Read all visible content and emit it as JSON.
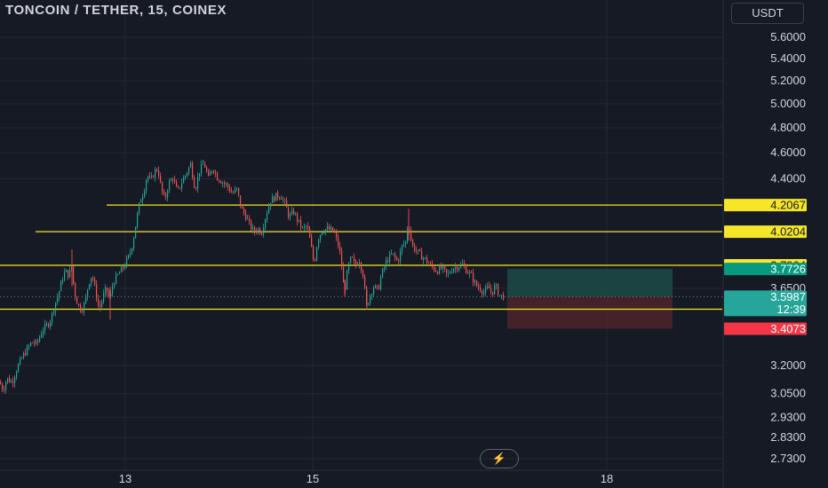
{
  "header": {
    "title": "TONCOIN / TETHER, 15, COINEX",
    "currency_button": "USDT",
    "logo_icon": "tradingview-icon"
  },
  "colors": {
    "background": "#161a25",
    "up": "#26a69a",
    "down": "#ef5350",
    "level_line": "#f5e629",
    "grid": "#242833",
    "profit_zone": "#1c4b48",
    "loss_zone": "#4e242c"
  },
  "chart_data": {
    "type": "candlestick",
    "y_scale": "log",
    "ylim": [
      2.7,
      5.7
    ],
    "y_ticks": [
      "5.6000",
      "5.4000",
      "5.2000",
      "5.0000",
      "4.8000",
      "4.6000",
      "4.4000",
      "3.6500",
      "3.2000",
      "3.0500",
      "2.9300",
      "2.8300",
      "2.7300"
    ],
    "x_ticks": [
      "13",
      "15",
      "18"
    ],
    "grid": true,
    "path_points": [
      [
        0,
        3.11
      ],
      [
        4,
        3.07
      ],
      [
        8,
        3.13
      ],
      [
        14,
        3.11
      ],
      [
        20,
        3.19
      ],
      [
        26,
        3.25
      ],
      [
        31,
        3.29
      ],
      [
        36,
        3.33
      ],
      [
        42,
        3.32
      ],
      [
        48,
        3.4
      ],
      [
        54,
        3.43
      ],
      [
        58,
        3.47
      ],
      [
        62,
        3.55
      ],
      [
        66,
        3.61
      ],
      [
        70,
        3.7
      ],
      [
        74,
        3.76
      ],
      [
        78,
        3.73
      ],
      [
        81,
        3.79
      ],
      [
        84,
        3.63
      ],
      [
        88,
        3.55
      ],
      [
        92,
        3.52
      ],
      [
        96,
        3.56
      ],
      [
        100,
        3.68
      ],
      [
        104,
        3.74
      ],
      [
        108,
        3.63
      ],
      [
        112,
        3.52
      ],
      [
        116,
        3.59
      ],
      [
        120,
        3.65
      ],
      [
        124,
        3.58
      ],
      [
        128,
        3.69
      ],
      [
        134,
        3.74
      ],
      [
        140,
        3.79
      ],
      [
        146,
        3.86
      ],
      [
        150,
        3.95
      ],
      [
        154,
        4.1
      ],
      [
        158,
        4.24
      ],
      [
        162,
        4.3
      ],
      [
        166,
        4.43
      ],
      [
        170,
        4.38
      ],
      [
        174,
        4.45
      ],
      [
        178,
        4.48
      ],
      [
        182,
        4.32
      ],
      [
        186,
        4.24
      ],
      [
        190,
        4.36
      ],
      [
        195,
        4.41
      ],
      [
        200,
        4.3
      ],
      [
        206,
        4.39
      ],
      [
        210,
        4.44
      ],
      [
        215,
        4.51
      ],
      [
        220,
        4.32
      ],
      [
        225,
        4.46
      ],
      [
        230,
        4.52
      ],
      [
        235,
        4.4
      ],
      [
        240,
        4.49
      ],
      [
        245,
        4.41
      ],
      [
        250,
        4.38
      ],
      [
        256,
        4.35
      ],
      [
        262,
        4.29
      ],
      [
        267,
        4.32
      ],
      [
        272,
        4.18
      ],
      [
        277,
        4.13
      ],
      [
        282,
        4.06
      ],
      [
        286,
        4.02
      ],
      [
        290,
        4.04
      ],
      [
        295,
        4.02
      ],
      [
        300,
        4.14
      ],
      [
        305,
        4.24
      ],
      [
        311,
        4.27
      ],
      [
        316,
        4.28
      ],
      [
        321,
        4.22
      ],
      [
        326,
        4.12
      ],
      [
        331,
        4.16
      ],
      [
        336,
        4.09
      ],
      [
        341,
        4.04
      ],
      [
        346,
        4.06
      ],
      [
        350,
        3.94
      ],
      [
        354,
        3.8
      ],
      [
        358,
        3.97
      ],
      [
        363,
        4.03
      ],
      [
        368,
        4.04
      ],
      [
        373,
        4.03
      ],
      [
        377,
        4.01
      ],
      [
        381,
        3.93
      ],
      [
        384,
        3.85
      ],
      [
        388,
        3.62
      ],
      [
        392,
        3.78
      ],
      [
        396,
        3.85
      ],
      [
        400,
        3.79
      ],
      [
        405,
        3.83
      ],
      [
        409,
        3.74
      ],
      [
        413,
        3.54
      ],
      [
        417,
        3.61
      ],
      [
        421,
        3.66
      ],
      [
        426,
        3.64
      ],
      [
        430,
        3.74
      ],
      [
        436,
        3.83
      ],
      [
        442,
        3.87
      ],
      [
        448,
        3.82
      ],
      [
        453,
        3.92
      ],
      [
        457,
        3.95
      ],
      [
        460,
        4.09
      ],
      [
        464,
        3.93
      ],
      [
        468,
        3.9
      ],
      [
        474,
        3.86
      ],
      [
        480,
        3.83
      ],
      [
        486,
        3.79
      ],
      [
        492,
        3.76
      ],
      [
        498,
        3.78
      ],
      [
        504,
        3.73
      ],
      [
        510,
        3.78
      ],
      [
        516,
        3.79
      ],
      [
        521,
        3.8
      ],
      [
        526,
        3.76
      ],
      [
        531,
        3.73
      ],
      [
        536,
        3.67
      ],
      [
        541,
        3.65
      ],
      [
        546,
        3.62
      ],
      [
        550,
        3.66
      ],
      [
        554,
        3.62
      ],
      [
        558,
        3.67
      ],
      [
        562,
        3.61
      ],
      [
        566,
        3.6
      ]
    ],
    "levels": [
      {
        "label": "4.2067",
        "value": 4.2067,
        "from_x": 120
      },
      {
        "label": "4.0204",
        "value": 4.0204,
        "from_x": 40
      },
      {
        "label": "3.7964",
        "value": 3.7964,
        "from_x": 0
      },
      {
        "label": "3.5224",
        "value": 3.5224,
        "from_x": 0
      }
    ],
    "position": {
      "take_profit": 3.7726,
      "entry": 3.5987,
      "stop_loss": 3.4073,
      "take_profit_label": "3.7726",
      "entry_label": "3.5987",
      "stop_loss_label": "3.4073"
    },
    "last_price": {
      "value": 3.5987,
      "label": "3.5987",
      "countdown": "12:39"
    },
    "marker": {
      "value": 3.5337,
      "label": "3.5337"
    }
  }
}
